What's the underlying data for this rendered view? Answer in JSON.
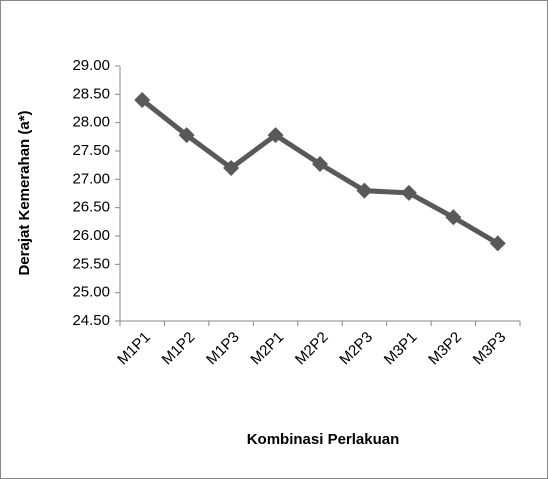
{
  "chart_data": {
    "type": "line",
    "y_label": "Derajat Kemerahan (a*)",
    "x_label": "Kombinasi Perlakuan",
    "categories": [
      "M1P1",
      "M1P2",
      "M1P3",
      "M2P1",
      "M2P2",
      "M2P3",
      "M3P1",
      "M3P2",
      "M3P3"
    ],
    "values": [
      28.4,
      27.78,
      27.2,
      27.78,
      27.27,
      26.8,
      26.76,
      26.33,
      25.87
    ],
    "color": "#595959",
    "ylim": [
      24.5,
      29
    ],
    "yticks": [
      {
        "value": 24.5,
        "label": "24.50"
      },
      {
        "value": 25,
        "label": "25.00"
      },
      {
        "value": 25.5,
        "label": "25.50"
      },
      {
        "value": 26,
        "label": "26.00"
      },
      {
        "value": 26.5,
        "label": "26.50"
      },
      {
        "value": 27,
        "label": "27.00"
      },
      {
        "value": 27.5,
        "label": "27.50"
      },
      {
        "value": 28,
        "label": "28.00"
      },
      {
        "value": 28.5,
        "label": "28.50"
      },
      {
        "value": 29,
        "label": "29.00"
      }
    ],
    "grid": false
  }
}
